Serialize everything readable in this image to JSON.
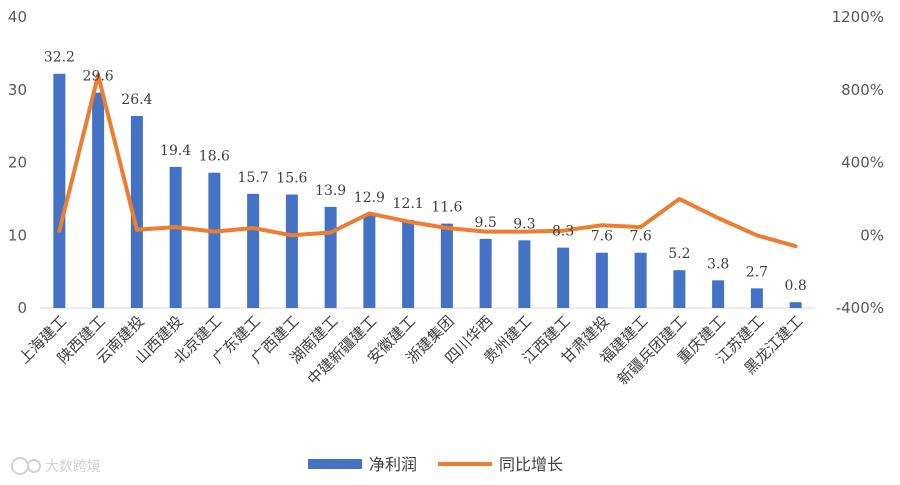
{
  "chart_data": {
    "type": "bar",
    "categories": [
      "上海建工",
      "陕西建工",
      "云南建投",
      "山西建投",
      "北京建工",
      "广东建工",
      "广西建工",
      "湖南建工",
      "中建新疆建工",
      "安徽建工",
      "浙建集团",
      "四川华西",
      "贵州建工",
      "江西建工",
      "甘肃建投",
      "福建建工",
      "新疆兵团建工",
      "重庆建工",
      "江苏建工",
      "黑龙江建工"
    ],
    "series": [
      {
        "name": "净利润",
        "type": "bar",
        "axis": "left",
        "color": "#4472C4",
        "values": [
          32.2,
          29.6,
          26.4,
          19.4,
          18.6,
          15.7,
          15.6,
          13.9,
          12.9,
          12.1,
          11.6,
          9.5,
          9.3,
          8.3,
          7.6,
          7.6,
          5.2,
          3.8,
          2.7,
          0.8
        ],
        "data_labels": [
          "32.2",
          "29.6",
          "26.4",
          "19.4",
          "18.6",
          "15.7",
          "15.6",
          "13.9",
          "12.9",
          "12.1",
          "11.6",
          "9.5",
          "9.3",
          "8.3",
          "7.6",
          "7.6",
          "5.2",
          "3.8",
          "2.7",
          "0.8"
        ]
      },
      {
        "name": "同比增长",
        "type": "line",
        "axis": "right",
        "color": "#ED7D31",
        "unit": "%",
        "values": [
          25,
          880,
          30,
          45,
          20,
          40,
          0,
          15,
          120,
          75,
          40,
          20,
          20,
          25,
          55,
          45,
          200,
          95,
          0,
          -60
        ]
      }
    ],
    "y_left": {
      "min": 0,
      "max": 40,
      "ticks": [
        "0",
        "10",
        "20",
        "30",
        "40"
      ]
    },
    "y_right": {
      "min": -400,
      "max": 1200,
      "ticks": [
        "-400%",
        "0%",
        "400%",
        "800%",
        "1200%"
      ]
    },
    "grid": false,
    "legend_position": "bottom"
  },
  "watermark": {
    "text": "大数跨境",
    "icon": "dashujukuajing-logo-icon"
  }
}
